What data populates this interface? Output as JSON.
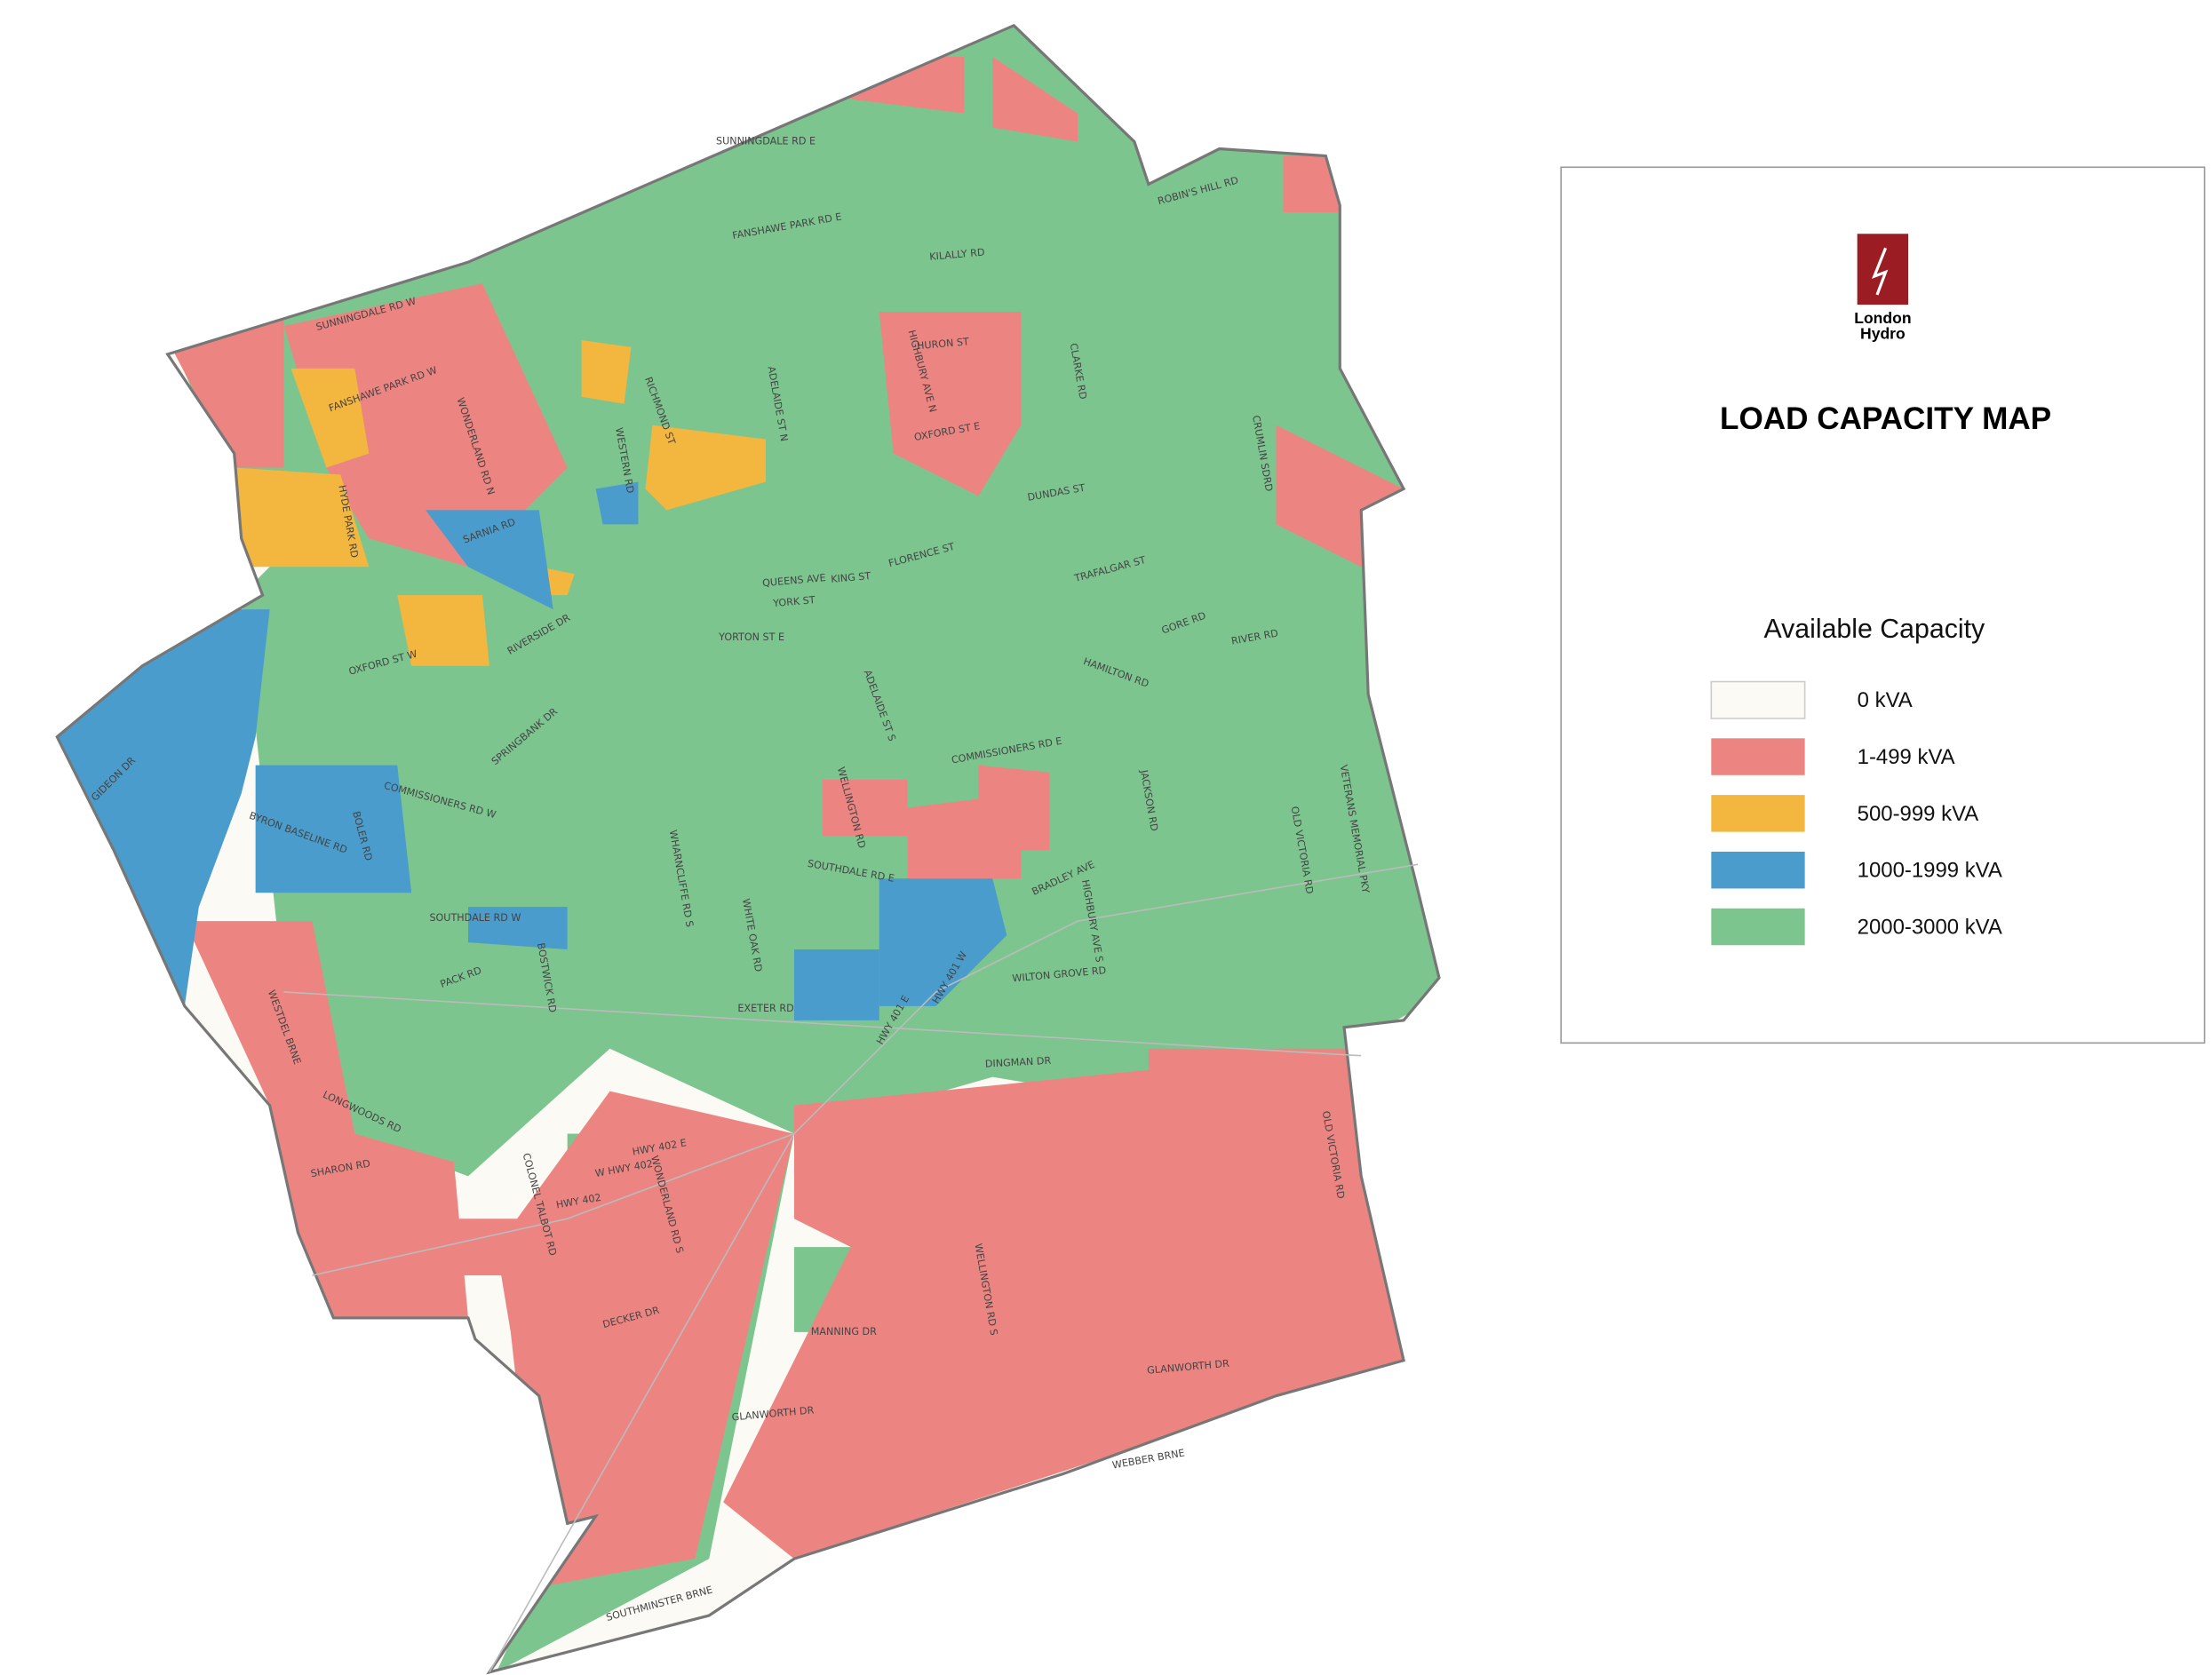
{
  "logo": {
    "line1": "London",
    "line2": "Hydro"
  },
  "title": "LOAD CAPACITY MAP",
  "legend": {
    "title": "Available Capacity",
    "items": [
      {
        "label": "0 kVA",
        "color": "#fbfaf4"
      },
      {
        "label": "1-499 kVA",
        "color": "#ec8582"
      },
      {
        "label": "500-999 kVA",
        "color": "#f3b63f"
      },
      {
        "label": "1000-1999 kVA",
        "color": "#4a9ccc"
      },
      {
        "label": "2000-3000 kVA",
        "color": "#7dc58f"
      }
    ]
  },
  "roads": [
    "SUNNINGDALE RD E",
    "FANSHAWE PARK RD E",
    "KILALLY RD",
    "ROBIN'S HILL RD",
    "SUNNINGDALE RD W",
    "FANSHAWE PARK RD W",
    "WONDERLAND RD N",
    "RICHMOND ST",
    "ADELAIDE ST N",
    "HIGHBURY AVE N",
    "HURON ST",
    "CLARKE RD",
    "OXFORD ST E",
    "CRUMLIN SDRD",
    "WESTERN RD",
    "HYDE PARK RD",
    "SARNIA RD",
    "DUNDAS ST",
    "FLORENCE ST",
    "QUEENS AVE",
    "KING ST",
    "YORK ST",
    "TRAFALGAR ST",
    "YORTON ST E",
    "GORE RD",
    "RIVER RD",
    "OXFORD ST W",
    "RIVERSIDE DR",
    "HAMILTON RD",
    "ADELAIDE ST S",
    "SPRINGBANK DR",
    "COMMISSIONERS RD E",
    "GIDEON DR",
    "COMMISSIONERS RD W",
    "WELLINGTON RD",
    "JACKSON RD",
    "OLD VICTORIA RD",
    "VETERANS MEMORIAL PKY",
    "BYRON BASELINE RD",
    "BOLER RD",
    "WHARNCLIFFE RD S",
    "SOUTHDALE RD E",
    "BRADLEY AVE",
    "HIGHBURY AVE S",
    "SOUTHDALE RD W",
    "WHITE OAK RD",
    "BOSTWICK RD",
    "PACK RD",
    "WILTON GROVE RD",
    "HWY 401 E",
    "HWY 401 W",
    "EXETER RD",
    "WESTDEL BRNE",
    "DINGMAN DR",
    "LONGWOODS RD",
    "OLD VICTORIA RD",
    "HWY 402 E",
    "W HWY 402",
    "SHARON RD",
    "HWY 402",
    "WONDERLAND RD S",
    "COLONEL TALBOT RD",
    "WELLINGTON RD S",
    "DECKER DR",
    "MANNING DR",
    "GLANWORTH DR",
    "GLANWORTH DR",
    "WEBBER BRNE",
    "SOUTHMINSTER BRNE"
  ]
}
